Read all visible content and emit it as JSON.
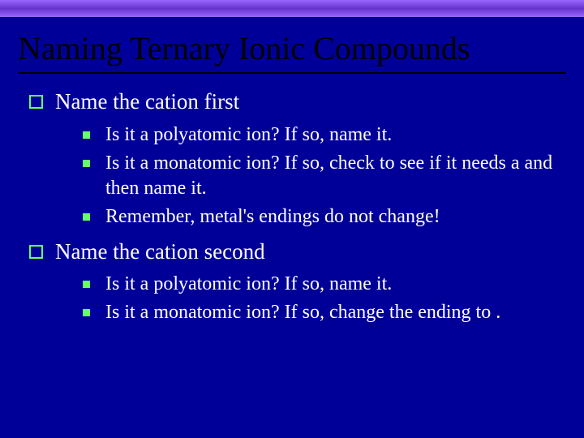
{
  "colors": {
    "background": "#000099",
    "top_bar_gradient_start": "#9966ff",
    "top_bar_gradient_mid": "#6633cc",
    "bullet_accent": "#66ff66",
    "title_color": "#000000",
    "text_color": "#ffffff"
  },
  "typography": {
    "title_fontsize": 40,
    "level1_fontsize": 27,
    "level2_fontsize": 24,
    "font_family": "Times New Roman"
  },
  "title": "Naming Ternary Ionic Compounds",
  "points": [
    {
      "text": "Name the cation first",
      "sub": [
        "Is it a polyatomic ion?  If so, name it.",
        "Is it a monatomic ion?  If so, check to see if it needs a                                     and then name it.",
        "Remember, metal's endings do not change!"
      ]
    },
    {
      "text": "Name the cation second",
      "sub": [
        "Is it a polyatomic ion?  If so, name it.",
        "Is it a monatomic ion?  If so, change the ending to         ."
      ]
    }
  ]
}
